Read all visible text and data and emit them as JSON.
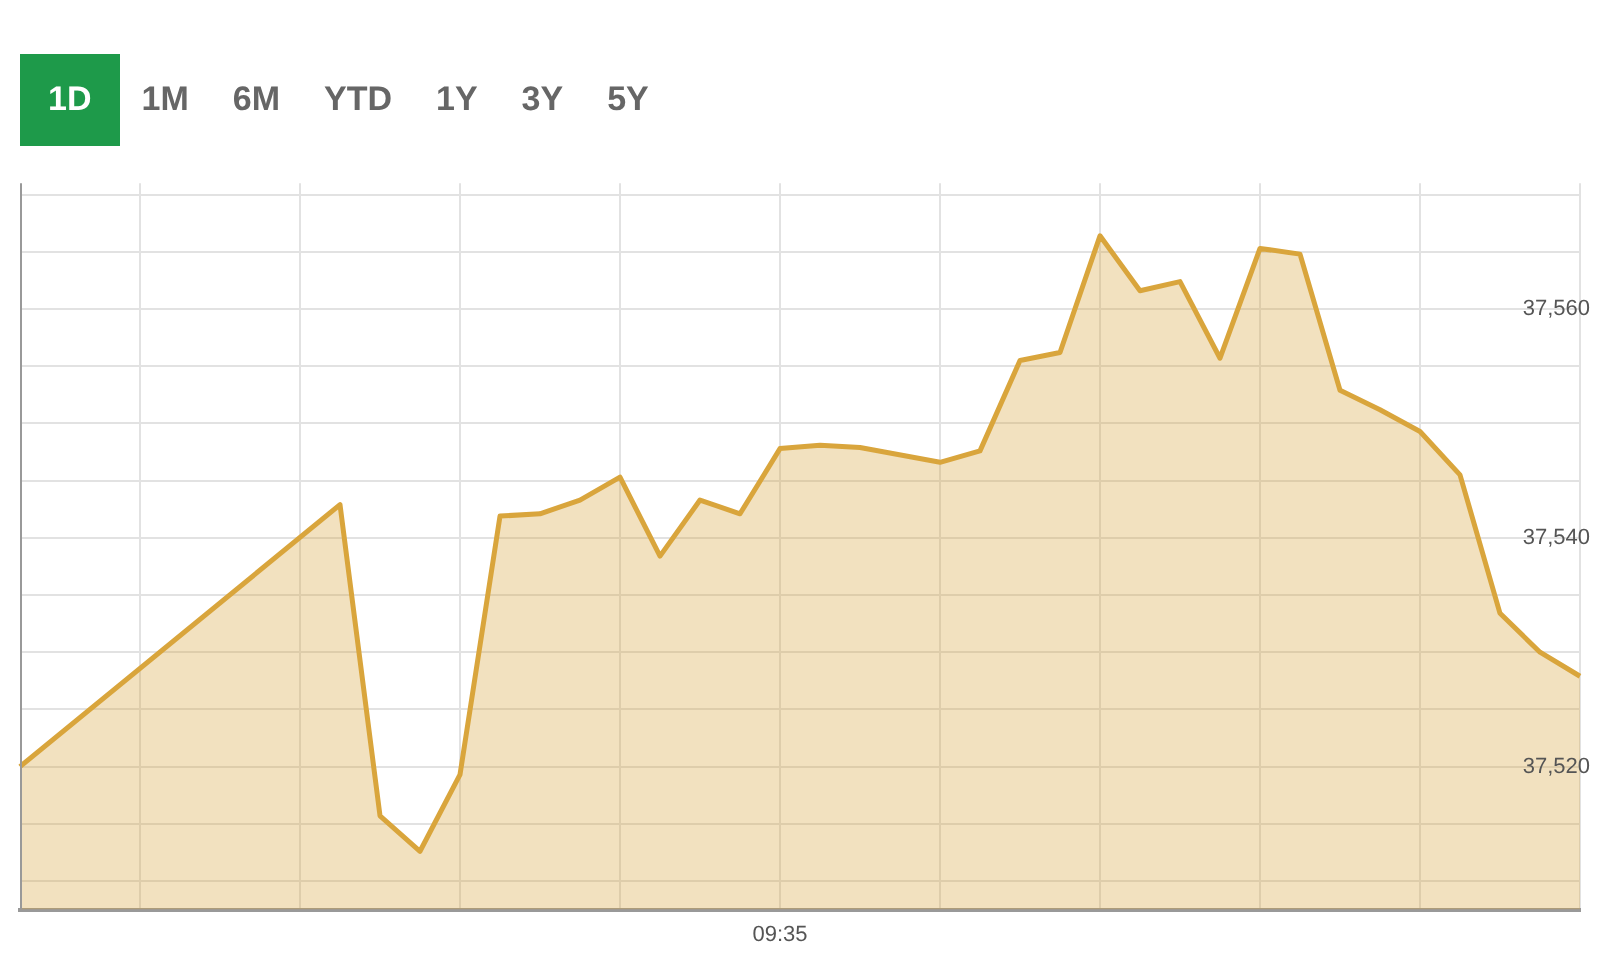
{
  "chart_data": {
    "type": "area",
    "color": "#d9a53c",
    "annotations": [
      "1D",
      "1M",
      "6M",
      "YTD",
      "1Y",
      "3Y",
      "5Y"
    ],
    "categories": [
      null,
      null,
      null,
      null,
      null,
      null,
      null,
      null,
      null,
      null,
      null,
      null,
      null,
      null,
      null,
      null,
      null,
      null,
      null,
      "09:35",
      null,
      null,
      null,
      null,
      null,
      null,
      null,
      null,
      null,
      null,
      null,
      null,
      null,
      null,
      null,
      null,
      null,
      null,
      null,
      null
    ],
    "values": [
      37520.0,
      null,
      null,
      null,
      null,
      null,
      null,
      null,
      37542.9,
      37515.7,
      37512.6,
      37519.3,
      37541.9,
      37542.1,
      37543.3,
      37545.3,
      37538.4,
      37543.3,
      37542.1,
      37547.8,
      37548.1,
      37547.9,
      null,
      37546.6,
      37547.6,
      37555.5,
      37556.2,
      37566.4,
      37561.6,
      37562.4,
      37555.7,
      37565.3,
      37564.8,
      37552.9,
      37551.2,
      37549.3,
      37545.5,
      37533.4,
      37530.0,
      37527.9
    ],
    "ylim": [
      37507.5,
      37571
    ],
    "yticks": [
      {
        "value": 37510,
        "label": null
      },
      {
        "value": 37515,
        "label": null
      },
      {
        "value": 37520,
        "label": "37,520"
      },
      {
        "value": 37525,
        "label": null
      },
      {
        "value": 37530,
        "label": null
      },
      {
        "value": 37535,
        "label": null
      },
      {
        "value": 37540,
        "label": "37,540"
      },
      {
        "value": 37545,
        "label": null
      },
      {
        "value": 37550,
        "label": null
      },
      {
        "value": 37555,
        "label": null
      },
      {
        "value": 37560,
        "label": "37,560"
      },
      {
        "value": 37565,
        "label": null
      },
      {
        "value": 37570,
        "label": null
      }
    ],
    "grid": true
  }
}
